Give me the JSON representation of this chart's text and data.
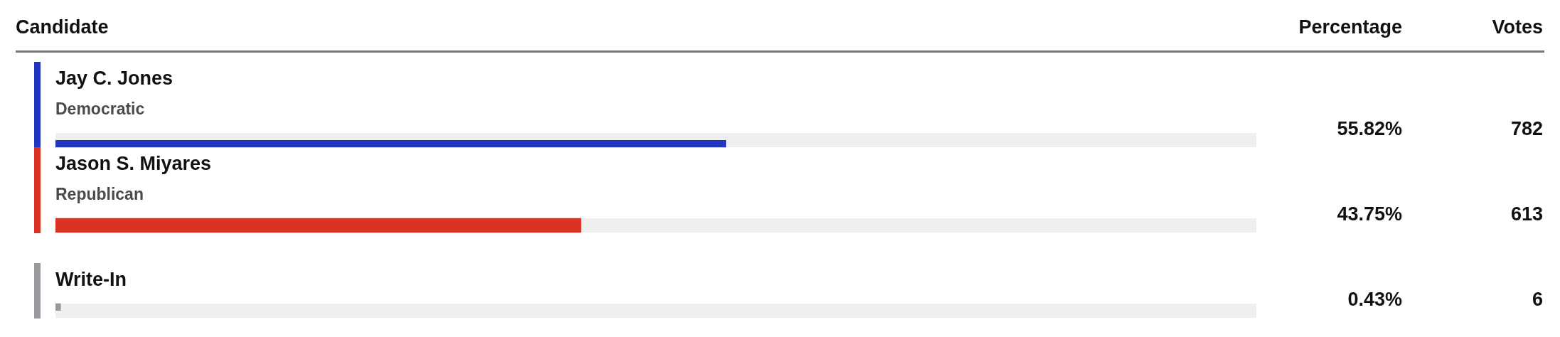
{
  "chart_data": {
    "type": "bar",
    "orientation": "horizontal",
    "ylabel": "Candidate",
    "xlabel": "Percentage",
    "categories": [
      "Jay C. Jones\nDemocratic",
      "Jason S. Miyares\nRepublican",
      "Write-In"
    ],
    "values": [
      55.82,
      43.75,
      0.43
    ],
    "colors": [
      "#2335be",
      "#dc3224",
      "#9a9a9e"
    ],
    "value_labels": [
      "55.82%",
      "43.75%",
      "0.43%"
    ],
    "xlim": [
      0,
      100
    ],
    "tick_labels": false,
    "legend": false,
    "annotations": [
      "Votes",
      "782",
      "613",
      "6"
    ]
  }
}
